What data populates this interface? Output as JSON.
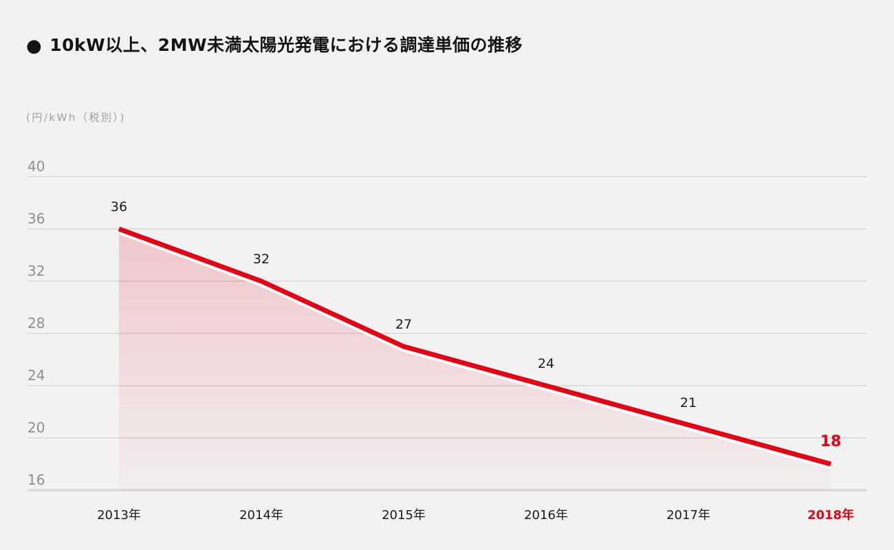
{
  "page": {
    "background": "#f2f2f2"
  },
  "header": {
    "bullet": "●",
    "title": "10kW以上、2MW未満太陽光発電における調達単価の推移"
  },
  "chart_data": {
    "type": "area",
    "title": "10kW以上、2MW未満太陽光発電における調達単価の推移",
    "unit_label": "(円/kWh（税別）)",
    "categories": [
      "2013年",
      "2014年",
      "2015年",
      "2016年",
      "2017年",
      "2018年"
    ],
    "values": [
      36,
      32,
      27,
      24,
      21,
      18
    ],
    "ylim": [
      16,
      40
    ],
    "yticks": [
      40,
      36,
      32,
      28,
      24,
      20,
      16
    ],
    "grid": true,
    "legend": "none",
    "highlight_last_index": 5,
    "colors": {
      "line": "#e60012",
      "highlight_text": "#e60012",
      "area_top": "rgba(230,0,18,0.18)",
      "area_bottom": "rgba(230,0,18,0.02)",
      "gridline": "#dcdcdc",
      "baseline": "#d9d9d9",
      "tick_text": "#8f8f8f",
      "label_text": "#1a1a1a",
      "background": "#f2f2f2"
    }
  }
}
